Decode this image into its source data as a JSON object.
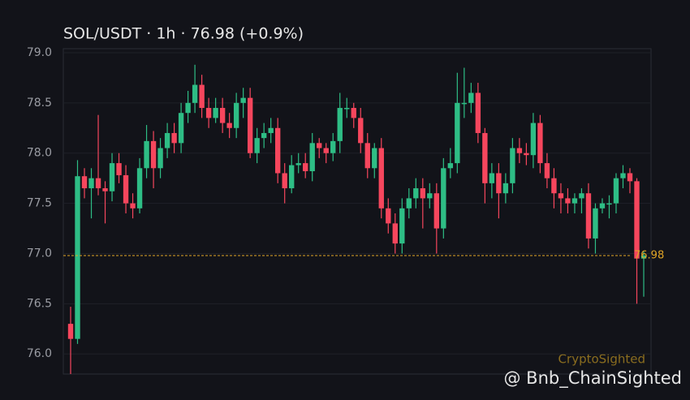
{
  "chart_data": {
    "type": "candlestick",
    "title": "SOL/USDT · 1h · 76.98 (+0.9%)",
    "open": [
      76.3,
      76.15,
      77.77,
      77.65,
      77.75,
      77.65,
      77.62,
      77.9,
      77.78,
      77.5,
      77.45,
      77.85,
      78.12,
      77.85,
      78.05,
      78.2,
      78.1,
      78.4,
      78.5,
      78.68,
      78.45,
      78.35,
      78.45,
      78.3,
      78.25,
      78.5,
      78.55,
      78.0,
      78.15,
      78.2,
      78.25,
      77.8,
      77.65,
      77.88,
      77.9,
      77.82,
      78.1,
      78.05,
      78.0,
      78.12,
      78.45,
      78.45,
      78.35,
      78.1,
      77.85,
      78.05,
      77.45,
      77.3,
      77.1,
      77.45,
      77.55,
      77.65,
      77.55,
      77.6,
      77.25,
      77.85,
      77.9,
      78.5,
      78.5,
      78.6,
      78.2,
      77.7,
      77.8,
      77.6,
      77.7,
      78.05,
      78.0,
      77.98,
      78.3,
      77.9,
      77.75,
      77.6,
      77.55,
      77.5,
      77.55,
      77.6,
      77.15,
      77.45,
      77.5,
      77.5,
      77.75,
      77.8,
      77.72,
      76.95
    ],
    "high": [
      76.47,
      77.93,
      77.85,
      77.85,
      78.38,
      77.72,
      78.0,
      78.0,
      77.88,
      77.6,
      77.95,
      78.28,
      78.22,
      78.15,
      78.3,
      78.3,
      78.5,
      78.62,
      78.88,
      78.78,
      78.55,
      78.55,
      78.55,
      78.4,
      78.6,
      78.65,
      78.65,
      78.25,
      78.3,
      78.35,
      78.35,
      77.9,
      77.98,
      78.0,
      78.0,
      78.2,
      78.15,
      78.1,
      78.2,
      78.6,
      78.55,
      78.5,
      78.45,
      78.2,
      78.1,
      78.15,
      77.55,
      77.4,
      77.55,
      77.65,
      77.75,
      77.75,
      77.7,
      77.7,
      77.95,
      78.05,
      78.8,
      78.85,
      78.7,
      78.7,
      78.25,
      77.9,
      77.9,
      77.8,
      78.15,
      78.15,
      78.1,
      78.4,
      78.38,
      78.0,
      77.85,
      77.7,
      77.65,
      77.6,
      77.65,
      77.7,
      77.5,
      77.55,
      77.58,
      77.8,
      77.88,
      77.85,
      77.75,
      77.02
    ],
    "low": [
      75.8,
      76.1,
      77.55,
      77.35,
      77.58,
      77.3,
      77.52,
      77.7,
      77.4,
      77.35,
      77.4,
      77.75,
      77.65,
      77.75,
      77.95,
      78.0,
      78.0,
      78.3,
      78.4,
      78.35,
      78.25,
      78.3,
      78.2,
      78.15,
      78.15,
      78.35,
      77.95,
      77.9,
      78.05,
      78.1,
      77.7,
      77.5,
      77.6,
      77.8,
      77.75,
      77.72,
      77.95,
      77.9,
      77.92,
      78.0,
      78.35,
      78.25,
      78.0,
      77.75,
      77.75,
      77.35,
      77.2,
      77.0,
      77.0,
      77.35,
      77.45,
      77.25,
      77.45,
      77.0,
      77.15,
      77.75,
      77.8,
      78.35,
      78.4,
      78.1,
      77.5,
      77.55,
      77.35,
      77.5,
      77.6,
      77.9,
      77.88,
      77.85,
      77.8,
      77.65,
      77.45,
      77.4,
      77.4,
      77.4,
      77.4,
      77.05,
      77.0,
      77.4,
      77.35,
      77.4,
      77.65,
      77.6,
      76.5,
      76.57
    ],
    "close": [
      76.15,
      77.77,
      77.65,
      77.75,
      77.65,
      77.62,
      77.9,
      77.78,
      77.5,
      77.45,
      77.85,
      78.12,
      77.85,
      78.05,
      78.2,
      78.1,
      78.4,
      78.5,
      78.68,
      78.45,
      78.35,
      78.45,
      78.3,
      78.25,
      78.5,
      78.55,
      78.0,
      78.15,
      78.2,
      78.25,
      77.8,
      77.65,
      77.88,
      77.9,
      77.82,
      78.1,
      78.05,
      78.0,
      78.12,
      78.45,
      78.45,
      78.35,
      78.1,
      77.85,
      78.05,
      77.45,
      77.3,
      77.1,
      77.45,
      77.55,
      77.65,
      77.55,
      77.6,
      77.25,
      77.85,
      77.9,
      78.5,
      78.5,
      78.6,
      78.2,
      77.7,
      77.8,
      77.6,
      77.7,
      78.05,
      78.0,
      77.98,
      78.3,
      77.9,
      77.75,
      77.6,
      77.55,
      77.5,
      77.55,
      77.6,
      77.15,
      77.45,
      77.5,
      77.5,
      77.75,
      77.8,
      77.72,
      76.95,
      76.98
    ],
    "up_color": "#2ebd85",
    "down_color": "#f6465d",
    "last_price": 76.98,
    "last_price_color": "#e0a526",
    "ylim": [
      75.8,
      79.04
    ],
    "yticks": [
      {
        "value": 76,
        "label": "76.0"
      },
      {
        "value": 76.5,
        "label": "76.5"
      },
      {
        "value": 77,
        "label": "77.0"
      },
      {
        "value": 77.5,
        "label": "77.5"
      },
      {
        "value": 78,
        "label": "78.0"
      },
      {
        "value": 78.5,
        "label": "78.5"
      },
      {
        "value": 79,
        "label": "79.0"
      }
    ],
    "grid": true,
    "watermark": "CryptoSighted",
    "credit": "@ Bnb_ChainSighted"
  }
}
